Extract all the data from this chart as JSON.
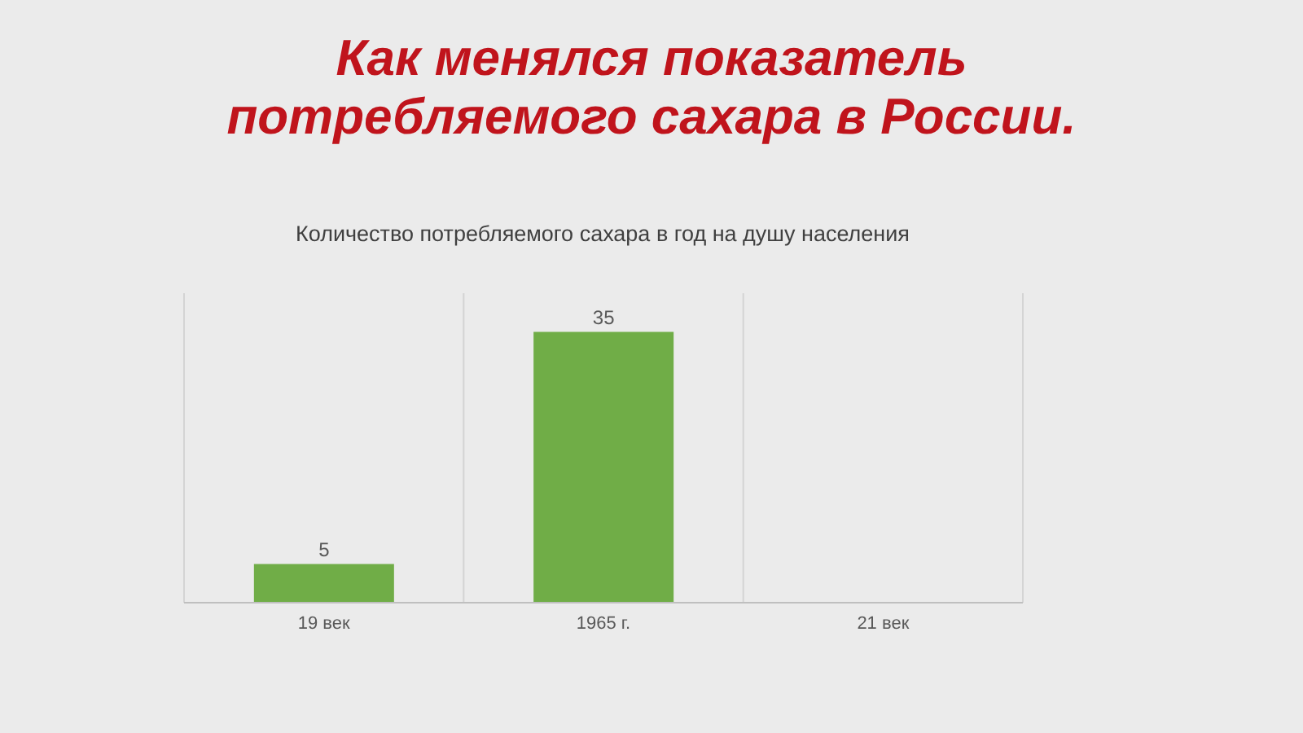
{
  "chart_data": {
    "type": "bar",
    "title": "Как менялся показатель потребляемого сахара в России.",
    "subtitle": "Количество потребляемого сахара в год на душу населения",
    "categories": [
      "19 век",
      "1965 г.",
      "21 век"
    ],
    "values": [
      5,
      35,
      null
    ],
    "color": "#70ad47",
    "data_labels": true,
    "ylim": [
      0,
      40
    ],
    "grid": "x"
  }
}
